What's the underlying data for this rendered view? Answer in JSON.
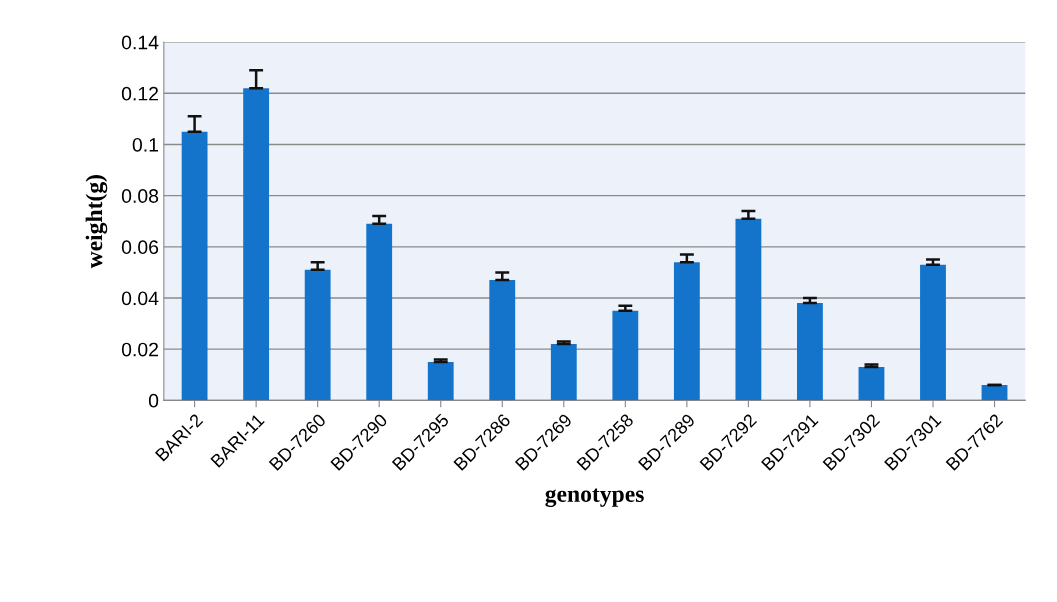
{
  "chart_data": {
    "type": "bar",
    "xlabel": "genotypes",
    "ylabel": "weight(g)",
    "categories": [
      "BARI-2",
      "BARI-11",
      "BD-7260",
      "BD-7290",
      "BD-7295",
      "BD-7286",
      "BD-7269",
      "BD-7258",
      "BD-7289",
      "BD-7292",
      "BD-7291",
      "BD-7302",
      "BD-7301",
      "BD-7762"
    ],
    "values": [
      0.105,
      0.122,
      0.051,
      0.069,
      0.015,
      0.047,
      0.022,
      0.035,
      0.054,
      0.071,
      0.038,
      0.013,
      0.053,
      0.006
    ],
    "errors": [
      0.006,
      0.007,
      0.003,
      0.003,
      0.001,
      0.003,
      0.001,
      0.002,
      0.003,
      0.003,
      0.002,
      0.001,
      0.002,
      null
    ],
    "color": "#1474cc",
    "ylim": [
      0,
      0.14
    ],
    "yticks": [
      0,
      0.02,
      0.04,
      0.06,
      0.08,
      0.1,
      0.12,
      0.14
    ],
    "grid": "y"
  }
}
